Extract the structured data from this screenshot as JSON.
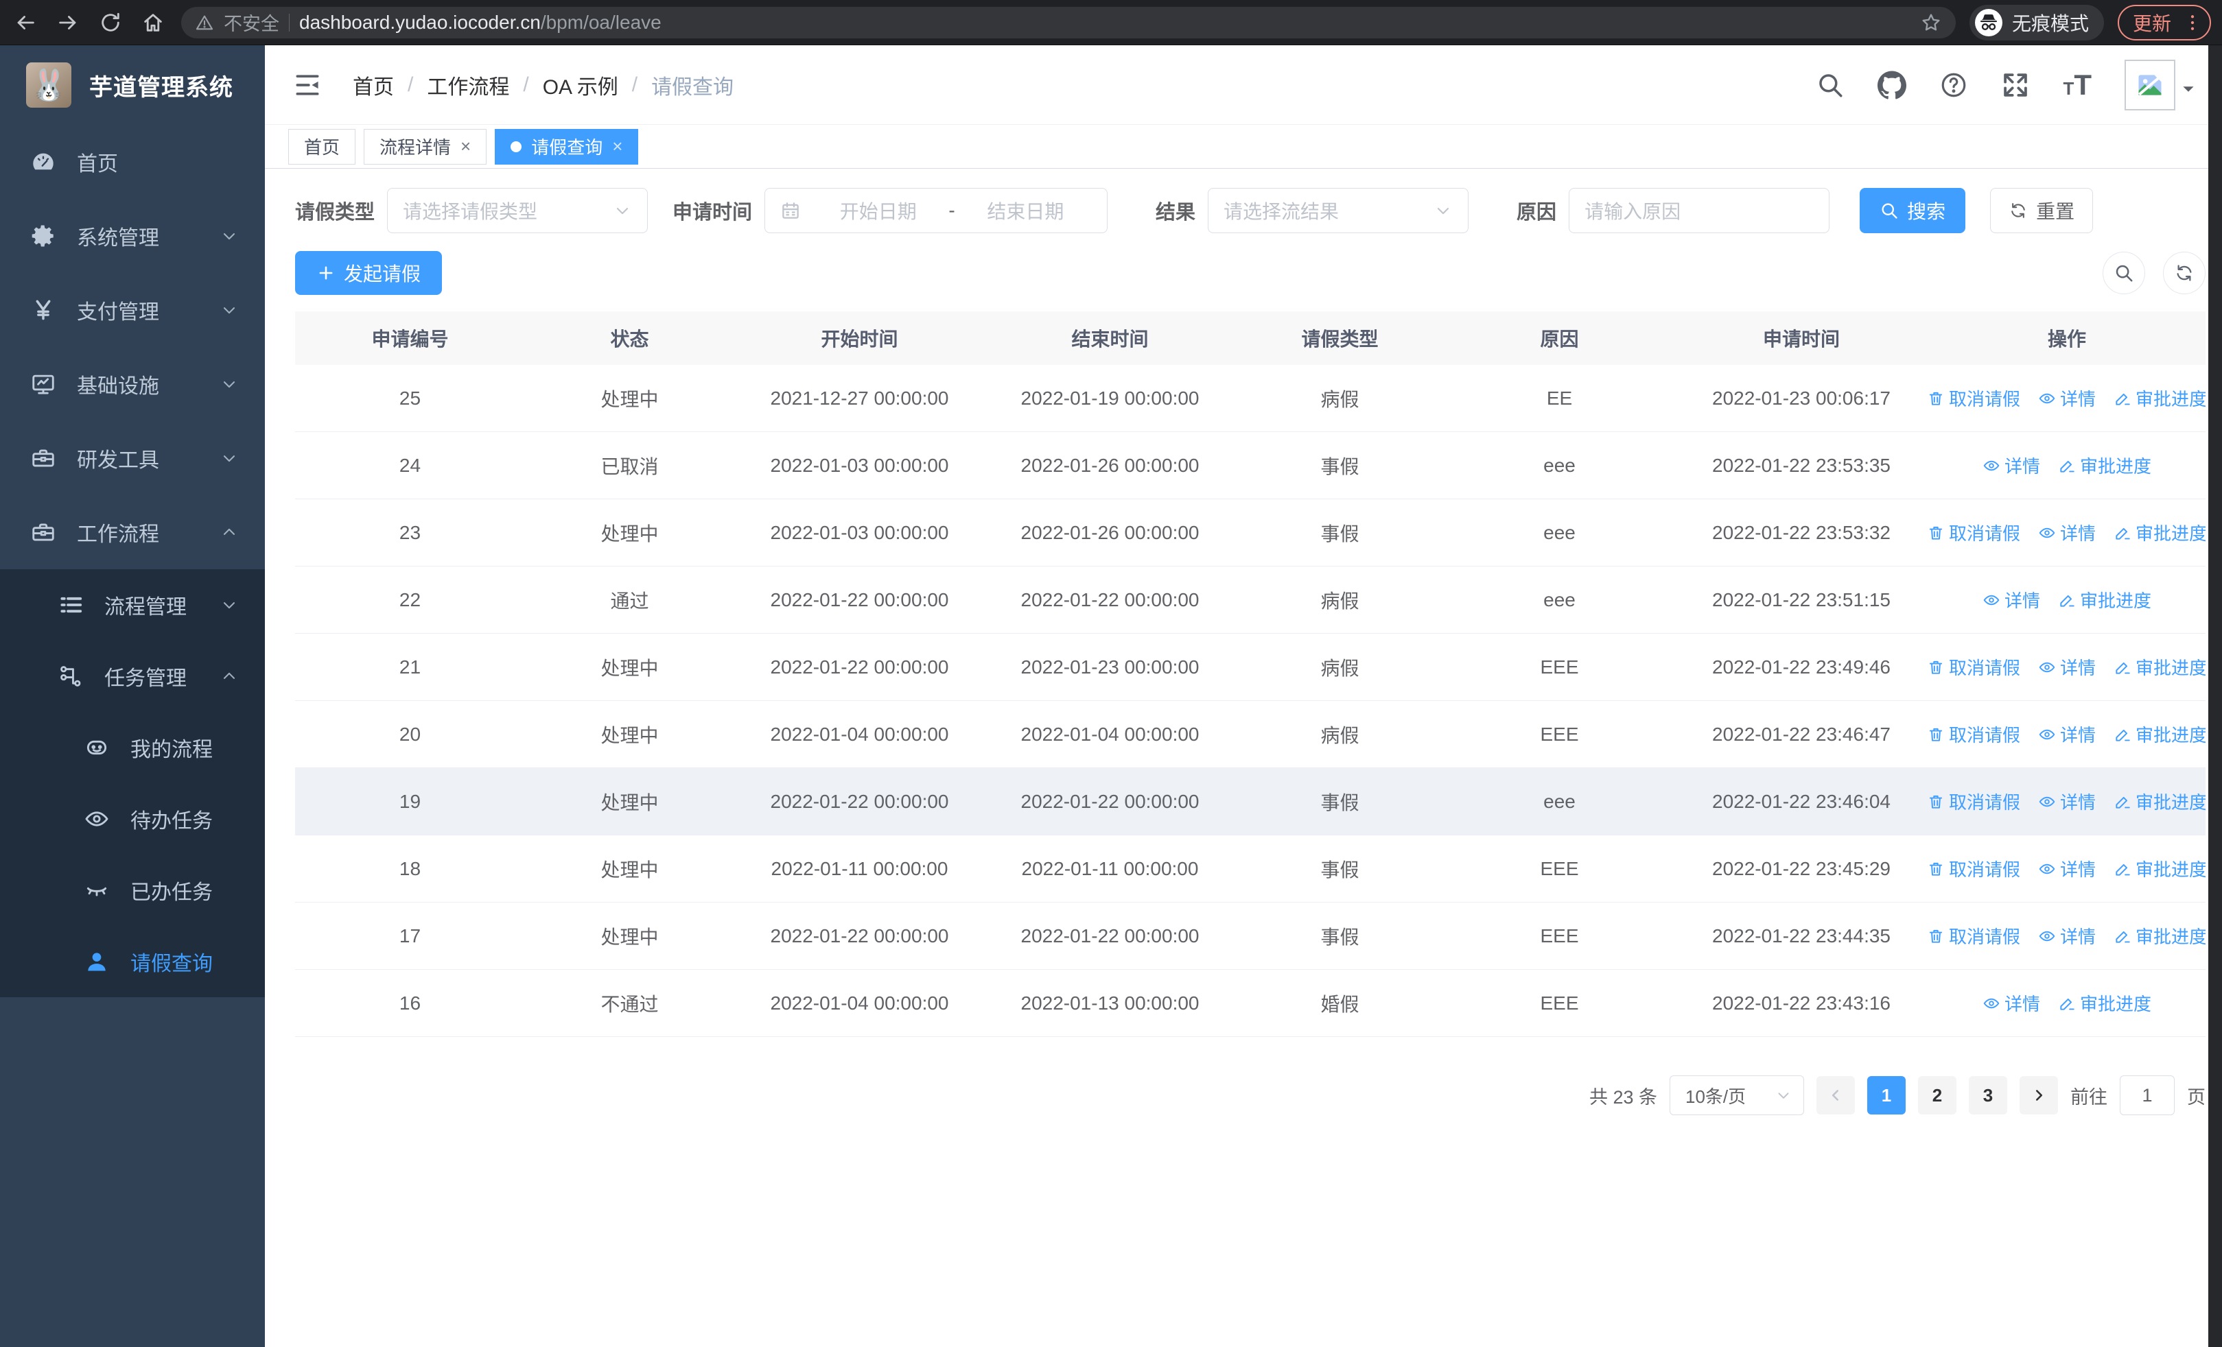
{
  "browser": {
    "security_label": "不安全",
    "url_host": "dashboard.yudao.iocoder.cn",
    "url_path": "/bpm/oa/leave",
    "incognito_label": "无痕模式",
    "update_label": "更新"
  },
  "colors": {
    "accent": "#409eff",
    "sidebar_bg": "#304156",
    "submenu_bg": "#1f2d3d",
    "sidebar_text": "#bfcbd9",
    "chrome_bg": "#202124",
    "update_accent": "#f28b82",
    "table_header_bg": "#f8f8f9",
    "row_highlight": "#eef1f6"
  },
  "sidebar": {
    "app_title": "芋道管理系统",
    "logo_icon": "rabbit-avatar",
    "items": [
      {
        "name": "home",
        "label": "首页",
        "icon": "dashboard-icon",
        "depth": 0,
        "chevron": null,
        "submenu": false,
        "active": false
      },
      {
        "name": "system-mgmt",
        "label": "系统管理",
        "icon": "gear-icon",
        "depth": 0,
        "chevron": "down",
        "submenu": false,
        "active": false
      },
      {
        "name": "payment-mgmt",
        "label": "支付管理",
        "icon": "yen-icon",
        "depth": 0,
        "chevron": "down",
        "submenu": false,
        "active": false
      },
      {
        "name": "infrastructure",
        "label": "基础设施",
        "icon": "monitor-icon",
        "depth": 0,
        "chevron": "down",
        "submenu": false,
        "active": false
      },
      {
        "name": "dev-tools",
        "label": "研发工具",
        "icon": "toolbox-icon",
        "depth": 0,
        "chevron": "down",
        "submenu": false,
        "active": false
      },
      {
        "name": "workflow",
        "label": "工作流程",
        "icon": "toolbox-icon",
        "depth": 0,
        "chevron": "up",
        "submenu": false,
        "active": false
      },
      {
        "name": "process-mgmt",
        "label": "流程管理",
        "icon": "list-tree-icon",
        "depth": 1,
        "chevron": "down",
        "submenu": true,
        "active": false
      },
      {
        "name": "task-mgmt",
        "label": "任务管理",
        "icon": "flow-icon",
        "depth": 1,
        "chevron": "up",
        "submenu": true,
        "active": false
      },
      {
        "name": "my-process",
        "label": "我的流程",
        "icon": "robot-icon",
        "depth": 2,
        "chevron": null,
        "submenu": true,
        "active": false
      },
      {
        "name": "todo-tasks",
        "label": "待办任务",
        "icon": "eye-open-icon",
        "depth": 2,
        "chevron": null,
        "submenu": true,
        "active": false
      },
      {
        "name": "done-tasks",
        "label": "已办任务",
        "icon": "eye-closed-icon",
        "depth": 2,
        "chevron": null,
        "submenu": true,
        "active": false
      },
      {
        "name": "leave-query",
        "label": "请假查询",
        "icon": "user-icon",
        "depth": 2,
        "chevron": null,
        "submenu": true,
        "active": true
      }
    ]
  },
  "header": {
    "breadcrumb": [
      "首页",
      "工作流程",
      "OA 示例",
      "请假查询"
    ],
    "icons": [
      "search-icon",
      "github-icon",
      "question-icon",
      "fullscreen-icon",
      "font-size-icon",
      "avatar-broken-image",
      "caret-down-icon"
    ]
  },
  "tabs": [
    {
      "name": "home",
      "label": "首页",
      "closable": false,
      "active": false
    },
    {
      "name": "process-detail",
      "label": "流程详情",
      "closable": true,
      "active": false
    },
    {
      "name": "leave-query",
      "label": "请假查询",
      "closable": true,
      "active": true
    }
  ],
  "filters": {
    "leave_type_label": "请假类型",
    "leave_type_placeholder": "请选择请假类型",
    "apply_time_label": "申请时间",
    "date_start_placeholder": "开始日期",
    "date_separator": "-",
    "date_end_placeholder": "结束日期",
    "result_label": "结果",
    "result_placeholder": "请选择流结果",
    "reason_label": "原因",
    "reason_placeholder": "请输入原因",
    "search_button": "搜索",
    "reset_button": "重置"
  },
  "toolbar": {
    "create_button": "发起请假",
    "icon_buttons": [
      "search-icon",
      "refresh-icon"
    ]
  },
  "table": {
    "columns": [
      "申请编号",
      "状态",
      "开始时间",
      "结束时间",
      "请假类型",
      "原因",
      "申请时间",
      "操作"
    ],
    "action_defs": {
      "cancel": {
        "label": "取消请假",
        "icon": "trash-icon"
      },
      "detail": {
        "label": "详情",
        "icon": "eye-open-icon"
      },
      "progress": {
        "label": "审批进度",
        "icon": "edit-icon"
      }
    },
    "rows": [
      {
        "id": "25",
        "status": "处理中",
        "start": "2021-12-27 00:00:00",
        "end": "2022-01-19 00:00:00",
        "type": "病假",
        "reason": "EE",
        "applied": "2022-01-23 00:06:17",
        "actions": [
          "cancel",
          "detail",
          "progress"
        ],
        "highlight": false
      },
      {
        "id": "24",
        "status": "已取消",
        "start": "2022-01-03 00:00:00",
        "end": "2022-01-26 00:00:00",
        "type": "事假",
        "reason": "eee",
        "applied": "2022-01-22 23:53:35",
        "actions": [
          "detail",
          "progress"
        ],
        "highlight": false
      },
      {
        "id": "23",
        "status": "处理中",
        "start": "2022-01-03 00:00:00",
        "end": "2022-01-26 00:00:00",
        "type": "事假",
        "reason": "eee",
        "applied": "2022-01-22 23:53:32",
        "actions": [
          "cancel",
          "detail",
          "progress"
        ],
        "highlight": false
      },
      {
        "id": "22",
        "status": "通过",
        "start": "2022-01-22 00:00:00",
        "end": "2022-01-22 00:00:00",
        "type": "病假",
        "reason": "eee",
        "applied": "2022-01-22 23:51:15",
        "actions": [
          "detail",
          "progress"
        ],
        "highlight": false
      },
      {
        "id": "21",
        "status": "处理中",
        "start": "2022-01-22 00:00:00",
        "end": "2022-01-23 00:00:00",
        "type": "病假",
        "reason": "EEE",
        "applied": "2022-01-22 23:49:46",
        "actions": [
          "cancel",
          "detail",
          "progress"
        ],
        "highlight": false
      },
      {
        "id": "20",
        "status": "处理中",
        "start": "2022-01-04 00:00:00",
        "end": "2022-01-04 00:00:00",
        "type": "病假",
        "reason": "EEE",
        "applied": "2022-01-22 23:46:47",
        "actions": [
          "cancel",
          "detail",
          "progress"
        ],
        "highlight": false
      },
      {
        "id": "19",
        "status": "处理中",
        "start": "2022-01-22 00:00:00",
        "end": "2022-01-22 00:00:00",
        "type": "事假",
        "reason": "eee",
        "applied": "2022-01-22 23:46:04",
        "actions": [
          "cancel",
          "detail",
          "progress"
        ],
        "highlight": true
      },
      {
        "id": "18",
        "status": "处理中",
        "start": "2022-01-11 00:00:00",
        "end": "2022-01-11 00:00:00",
        "type": "事假",
        "reason": "EEE",
        "applied": "2022-01-22 23:45:29",
        "actions": [
          "cancel",
          "detail",
          "progress"
        ],
        "highlight": false
      },
      {
        "id": "17",
        "status": "处理中",
        "start": "2022-01-22 00:00:00",
        "end": "2022-01-22 00:00:00",
        "type": "事假",
        "reason": "EEE",
        "applied": "2022-01-22 23:44:35",
        "actions": [
          "cancel",
          "detail",
          "progress"
        ],
        "highlight": false
      },
      {
        "id": "16",
        "status": "不通过",
        "start": "2022-01-04 00:00:00",
        "end": "2022-01-13 00:00:00",
        "type": "婚假",
        "reason": "EEE",
        "applied": "2022-01-22 23:43:16",
        "actions": [
          "detail",
          "progress"
        ],
        "highlight": false
      }
    ]
  },
  "pagination": {
    "total_label": "共 23 条",
    "page_size": "10条/页",
    "pages": [
      "1",
      "2",
      "3"
    ],
    "active_page": "1",
    "goto_label": "前往",
    "goto_value": "1",
    "page_suffix": "页"
  }
}
